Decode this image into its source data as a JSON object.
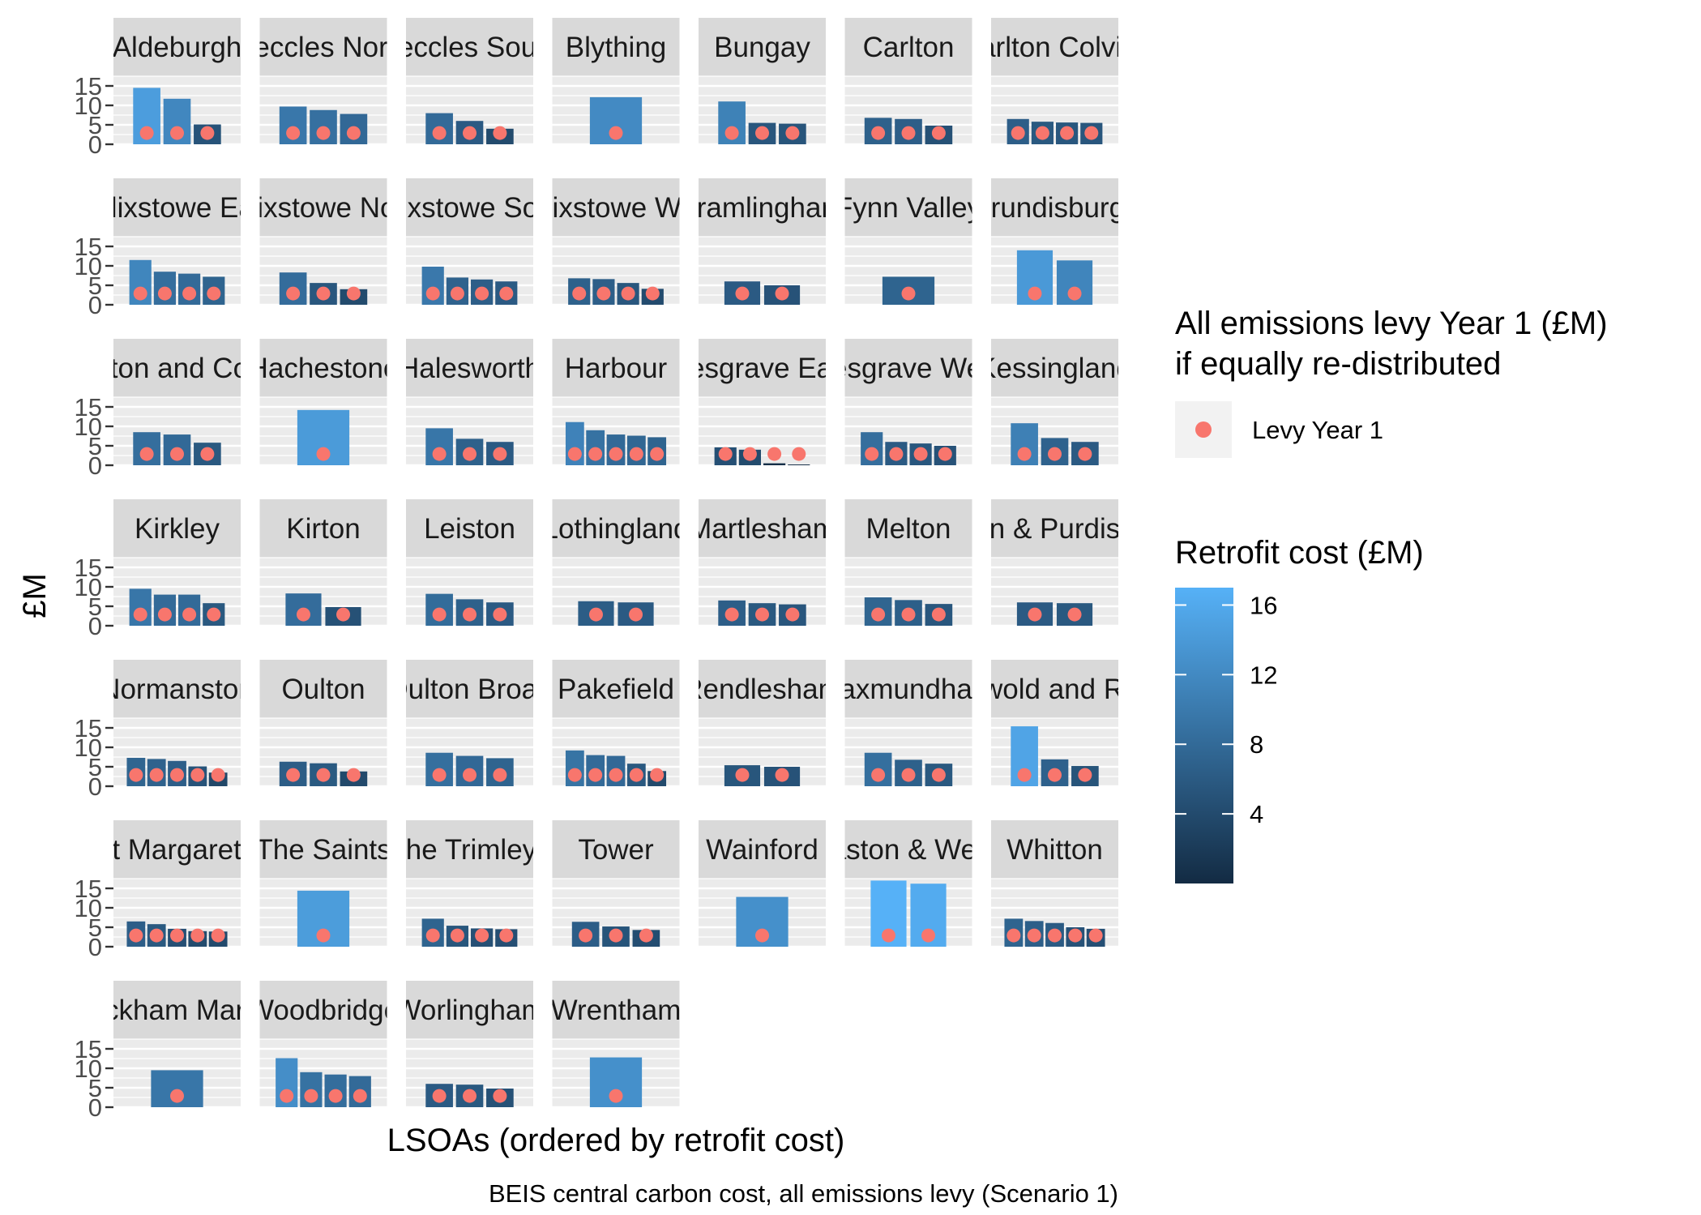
{
  "chart_data": {
    "type": "bar",
    "facet_layout": "wrap, 7 columns, fixed scales",
    "ylabel": "£M",
    "xlabel": "LSOAs (ordered by retrofit cost)",
    "caption": "BEIS central carbon cost, all emissions levy (Scenario 1)",
    "yticks": [
      0,
      5,
      10,
      15
    ],
    "ylim": [
      0,
      17.5
    ],
    "grid": true,
    "fill_scale": {
      "title": "Retrofit cost (£M)",
      "breaks": [
        4,
        8,
        12,
        16
      ],
      "range": [
        0,
        17
      ],
      "low_color": "#132B43",
      "high_color": "#56B1F7"
    },
    "point_legend": {
      "title_lines": [
        "All emissions levy Year 1 (£M)",
        "if equally re-distributed"
      ],
      "label": "Levy Year 1",
      "color": "#F8766D"
    },
    "legend_position": "right",
    "panels": [
      {
        "label": "Aldeburgh",
        "values": [
          14.5,
          11.7,
          5.1
        ],
        "levy": [
          2.9,
          2.9,
          2.9
        ]
      },
      {
        "label": "Beccles North",
        "values": [
          9.7,
          8.8,
          7.8
        ],
        "levy": [
          2.9,
          2.9,
          2.9
        ]
      },
      {
        "label": "Beccles South",
        "values": [
          8.0,
          6.0,
          4.0
        ],
        "levy": [
          2.9,
          2.9,
          2.9
        ]
      },
      {
        "label": "Blything",
        "values": [
          12.1
        ],
        "levy": [
          2.9
        ]
      },
      {
        "label": "Bungay",
        "values": [
          11.0,
          5.5,
          5.3
        ],
        "levy": [
          2.9,
          2.9,
          2.9
        ]
      },
      {
        "label": "Carlton",
        "values": [
          6.8,
          6.5,
          4.8
        ],
        "levy": [
          2.9,
          2.9,
          2.9
        ]
      },
      {
        "label": "Carlton Colville",
        "values": [
          6.5,
          5.8,
          5.6,
          5.5
        ],
        "levy": [
          2.9,
          2.9,
          2.9,
          2.9
        ]
      },
      {
        "label": "Felixstowe East",
        "values": [
          11.5,
          8.5,
          8.0,
          7.2
        ],
        "levy": [
          2.9,
          2.9,
          2.9,
          2.9
        ]
      },
      {
        "label": "Felixstowe North",
        "values": [
          8.3,
          5.6,
          4.0
        ],
        "levy": [
          2.9,
          2.9,
          2.9
        ]
      },
      {
        "label": "Felixstowe South",
        "values": [
          9.8,
          7.0,
          6.5,
          6.0
        ],
        "levy": [
          2.9,
          2.9,
          2.9,
          2.9
        ]
      },
      {
        "label": "Felixstowe West",
        "values": [
          6.8,
          6.6,
          5.6,
          4.1
        ],
        "levy": [
          2.9,
          2.9,
          2.9,
          2.9
        ]
      },
      {
        "label": "Framlingham",
        "values": [
          6.0,
          5.0
        ],
        "levy": [
          2.9,
          2.9
        ]
      },
      {
        "label": "Fynn Valley",
        "values": [
          7.2
        ],
        "levy": [
          2.9
        ]
      },
      {
        "label": "Grundisburgh",
        "values": [
          14.0,
          11.4
        ],
        "levy": [
          2.9,
          2.9
        ]
      },
      {
        "label": "Gunton and Corton",
        "values": [
          8.5,
          7.9,
          5.8
        ],
        "levy": [
          2.9,
          2.9,
          2.9
        ]
      },
      {
        "label": "Hachestone",
        "values": [
          14.2
        ],
        "levy": [
          2.9
        ]
      },
      {
        "label": "Halesworth",
        "values": [
          9.5,
          6.8,
          6.0
        ],
        "levy": [
          2.9,
          2.9,
          2.9
        ]
      },
      {
        "label": "Harbour",
        "values": [
          11.1,
          9.0,
          7.9,
          7.6,
          7.2
        ],
        "levy": [
          2.9,
          2.9,
          2.9,
          2.9,
          2.9
        ]
      },
      {
        "label": "Kesgrave East",
        "values": [
          4.6,
          4.0,
          0.5,
          0.2
        ],
        "levy": [
          2.9,
          2.9,
          2.9,
          2.9
        ]
      },
      {
        "label": "Kesgrave West",
        "values": [
          8.5,
          6.0,
          5.6,
          5.0
        ],
        "levy": [
          2.9,
          2.9,
          2.9,
          2.9
        ]
      },
      {
        "label": "Kessingland",
        "values": [
          10.8,
          7.0,
          6.0
        ],
        "levy": [
          2.9,
          2.9,
          2.9
        ]
      },
      {
        "label": "Kirkley",
        "values": [
          9.5,
          8.0,
          8.0,
          5.8
        ],
        "levy": [
          2.9,
          2.9,
          2.9,
          2.9
        ]
      },
      {
        "label": "Kirton",
        "values": [
          8.3,
          4.8
        ],
        "levy": [
          2.9,
          2.9
        ]
      },
      {
        "label": "Leiston",
        "values": [
          8.2,
          6.8,
          6.0
        ],
        "levy": [
          2.9,
          2.9,
          2.9
        ]
      },
      {
        "label": "Lothingland",
        "values": [
          6.3,
          6.0
        ],
        "levy": [
          2.9,
          2.9
        ]
      },
      {
        "label": "Martlesham",
        "values": [
          6.5,
          5.8,
          5.5
        ],
        "levy": [
          2.9,
          2.9,
          2.9
        ]
      },
      {
        "label": "Melton",
        "values": [
          7.3,
          6.6,
          5.6
        ],
        "levy": [
          2.9,
          2.9,
          2.9
        ]
      },
      {
        "label": "Nacton & Purdis Farm",
        "values": [
          6.0,
          5.8
        ],
        "levy": [
          2.9,
          2.9
        ]
      },
      {
        "label": "Normanston",
        "values": [
          7.3,
          7.0,
          6.5,
          5.1,
          3.5
        ],
        "levy": [
          2.9,
          2.9,
          2.9,
          2.9,
          2.9
        ]
      },
      {
        "label": "Oulton",
        "values": [
          6.3,
          5.9,
          3.8
        ],
        "levy": [
          2.9,
          2.9,
          2.9
        ]
      },
      {
        "label": "Oulton Broad",
        "values": [
          8.6,
          7.8,
          7.2
        ],
        "levy": [
          2.9,
          2.9,
          2.9
        ]
      },
      {
        "label": "Pakefield",
        "values": [
          9.2,
          8.0,
          7.8,
          5.8,
          3.9
        ],
        "levy": [
          2.9,
          2.9,
          2.9,
          2.9,
          2.9
        ]
      },
      {
        "label": "Rendlesham",
        "values": [
          5.4,
          5.0
        ],
        "levy": [
          2.9,
          2.9
        ]
      },
      {
        "label": "Saxmundham",
        "values": [
          8.6,
          6.8,
          5.8
        ],
        "levy": [
          2.9,
          2.9,
          2.9
        ]
      },
      {
        "label": "Southwold and Reydon",
        "values": [
          15.4,
          6.9,
          5.2
        ],
        "levy": [
          2.9,
          2.9,
          2.9
        ]
      },
      {
        "label": "St Margaret's",
        "values": [
          6.5,
          5.8,
          4.6,
          4.0,
          3.9
        ],
        "levy": [
          2.9,
          2.9,
          2.9,
          2.9,
          2.9
        ]
      },
      {
        "label": "The Saints",
        "values": [
          14.4
        ],
        "levy": [
          2.9
        ]
      },
      {
        "label": "The Trimleys",
        "values": [
          7.2,
          5.4,
          4.7,
          4.5
        ],
        "levy": [
          2.9,
          2.9,
          2.9,
          2.9
        ]
      },
      {
        "label": "Tower",
        "values": [
          6.4,
          5.2,
          4.3
        ],
        "levy": [
          2.9,
          2.9,
          2.9
        ]
      },
      {
        "label": "Wainford",
        "values": [
          12.8
        ],
        "levy": [
          2.9
        ]
      },
      {
        "label": "Wenhaston & Westleton",
        "values": [
          17.0,
          16.2
        ],
        "levy": [
          2.9,
          2.9
        ]
      },
      {
        "label": "Whitton",
        "values": [
          7.2,
          6.6,
          6.1,
          5.0,
          4.6
        ],
        "levy": [
          2.9,
          2.9,
          2.9,
          2.9,
          2.9
        ]
      },
      {
        "label": "Wickham Market",
        "values": [
          9.5
        ],
        "levy": [
          2.9
        ]
      },
      {
        "label": "Woodbridge",
        "values": [
          12.6,
          9.0,
          8.4,
          8.0
        ],
        "levy": [
          2.9,
          2.9,
          2.9,
          2.9
        ]
      },
      {
        "label": "Worlingham",
        "values": [
          6.0,
          5.8,
          4.8
        ],
        "levy": [
          2.9,
          2.9,
          2.9
        ]
      },
      {
        "label": "Wrentham",
        "values": [
          12.8
        ],
        "levy": [
          2.9
        ]
      }
    ]
  }
}
